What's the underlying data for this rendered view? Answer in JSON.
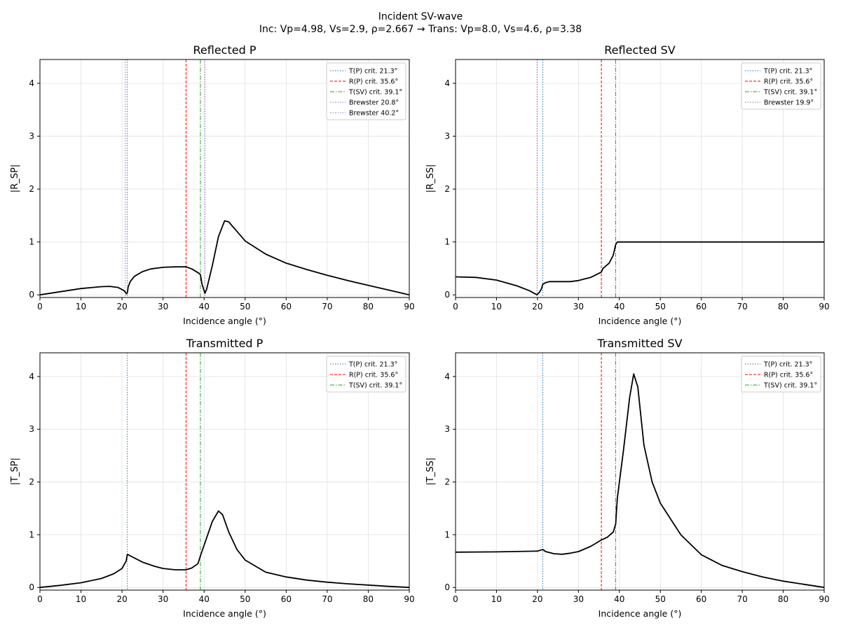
{
  "figure": {
    "title_line1": "Incident SV-wave",
    "title_line2": "Inc: Vp=4.98, Vs=2.9, ρ=2.667  →  Trans: Vp=8.0, Vs=4.6, ρ=3.38"
  },
  "colors": {
    "curve": "#000000",
    "tp_crit": "#1f77b4",
    "rp_crit": "#ff0000",
    "tsv_crit": "#2ca02c",
    "brewster": "#9467bd",
    "grid": "#e0e0e0"
  },
  "chart_data": [
    {
      "type": "line",
      "title": "Reflected P",
      "xlabel": "Incidence angle (°)",
      "ylabel": "|R_SP|",
      "xlim": [
        0,
        90
      ],
      "ylim": [
        -0.05,
        4.45
      ],
      "xticks": [
        0,
        10,
        20,
        30,
        40,
        50,
        60,
        70,
        80,
        90
      ],
      "yticks": [
        0,
        1,
        2,
        3,
        4
      ],
      "grid": true,
      "legend": "top-right",
      "x": [
        0,
        5,
        10,
        15,
        17,
        19,
        20.5,
        21.1,
        21.3,
        21.5,
        22,
        23,
        25,
        27,
        30,
        33,
        35.6,
        37,
        38.7,
        39.1,
        39.5,
        40.2,
        40.6,
        42,
        43.5,
        45,
        46,
        48,
        50,
        55,
        60,
        65,
        70,
        75,
        80,
        85,
        90
      ],
      "y": [
        0,
        0.06,
        0.12,
        0.155,
        0.16,
        0.14,
        0.08,
        0.02,
        0.04,
        0.15,
        0.25,
        0.35,
        0.44,
        0.49,
        0.52,
        0.53,
        0.53,
        0.49,
        0.41,
        0.38,
        0.2,
        0.03,
        0.1,
        0.55,
        1.1,
        1.4,
        1.38,
        1.2,
        1.02,
        0.77,
        0.6,
        0.48,
        0.37,
        0.27,
        0.18,
        0.09,
        0
      ],
      "vlines": [
        {
          "label": "T(P) crit. 21.3°",
          "x": 21.3,
          "kind": "tp"
        },
        {
          "label": "R(P) crit. 35.6°",
          "x": 35.6,
          "kind": "rp"
        },
        {
          "label": "T(SV) crit. 39.1°",
          "x": 39.1,
          "kind": "tsv"
        },
        {
          "label": "Brewster 20.8°",
          "x": 20.8,
          "kind": "brewster"
        },
        {
          "label": "Brewster 40.2°",
          "x": 40.2,
          "kind": "brewster"
        }
      ]
    },
    {
      "type": "line",
      "title": "Reflected SV",
      "xlabel": "Incidence angle (°)",
      "ylabel": "|R_SS|",
      "xlim": [
        0,
        90
      ],
      "ylim": [
        -0.05,
        4.45
      ],
      "xticks": [
        0,
        10,
        20,
        30,
        40,
        50,
        60,
        70,
        80,
        90
      ],
      "yticks": [
        0,
        1,
        2,
        3,
        4
      ],
      "grid": true,
      "legend": "top-right",
      "x": [
        0,
        5,
        10,
        15,
        18,
        19.9,
        20.5,
        21,
        21.3,
        22,
        23,
        25,
        28,
        30,
        33,
        35.6,
        36,
        37.5,
        38.5,
        39.1,
        39.5,
        90
      ],
      "y": [
        0.34,
        0.33,
        0.28,
        0.17,
        0.08,
        0,
        0.05,
        0.12,
        0.2,
        0.23,
        0.25,
        0.25,
        0.25,
        0.27,
        0.33,
        0.43,
        0.5,
        0.6,
        0.75,
        0.95,
        1.0,
        1.0
      ],
      "vlines": [
        {
          "label": "T(P) crit. 21.3°",
          "x": 21.3,
          "kind": "tp"
        },
        {
          "label": "R(P) crit. 35.6°",
          "x": 35.6,
          "kind": "rp"
        },
        {
          "label": "T(SV) crit. 39.1°",
          "x": 39.1,
          "kind": "tsv"
        },
        {
          "label": "Brewster 19.9°",
          "x": 19.9,
          "kind": "brewster"
        }
      ]
    },
    {
      "type": "line",
      "title": "Transmitted P",
      "xlabel": "Incidence angle (°)",
      "ylabel": "|T_SP|",
      "xlim": [
        0,
        90
      ],
      "ylim": [
        -0.05,
        4.45
      ],
      "xticks": [
        0,
        10,
        20,
        30,
        40,
        50,
        60,
        70,
        80,
        90
      ],
      "yticks": [
        0,
        1,
        2,
        3,
        4
      ],
      "grid": true,
      "legend": "top-right",
      "x": [
        0,
        5,
        10,
        15,
        18,
        20,
        21,
        21.3,
        22,
        25,
        28,
        30,
        33,
        35.6,
        37,
        38.5,
        39.1,
        40,
        42,
        43.5,
        44.5,
        46,
        48,
        50,
        55,
        60,
        65,
        70,
        75,
        80,
        85,
        90
      ],
      "y": [
        0,
        0.04,
        0.09,
        0.17,
        0.26,
        0.36,
        0.5,
        0.63,
        0.6,
        0.48,
        0.4,
        0.36,
        0.335,
        0.335,
        0.37,
        0.45,
        0.6,
        0.8,
        1.25,
        1.45,
        1.38,
        1.05,
        0.72,
        0.52,
        0.29,
        0.2,
        0.14,
        0.1,
        0.07,
        0.045,
        0.02,
        0
      ],
      "vlines": [
        {
          "label": "T(P) crit. 21.3°",
          "x": 21.3,
          "kind": "tp"
        },
        {
          "label": "R(P) crit. 35.6°",
          "x": 35.6,
          "kind": "rp"
        },
        {
          "label": "T(SV) crit. 39.1°",
          "x": 39.1,
          "kind": "tsv"
        }
      ]
    },
    {
      "type": "line",
      "title": "Transmitted SV",
      "xlabel": "Incidence angle (°)",
      "ylabel": "|T_SS|",
      "xlim": [
        0,
        90
      ],
      "ylim": [
        -0.05,
        4.45
      ],
      "xticks": [
        0,
        10,
        20,
        30,
        40,
        50,
        60,
        70,
        80,
        90
      ],
      "yticks": [
        0,
        1,
        2,
        3,
        4
      ],
      "grid": true,
      "legend": "top-right",
      "x": [
        0,
        10,
        20,
        21.3,
        22,
        24,
        26,
        28,
        30,
        33,
        35.6,
        37,
        38.5,
        39.1,
        39.5,
        41,
        42.5,
        43.5,
        44.5,
        46,
        48,
        50,
        55,
        60,
        65,
        70,
        75,
        80,
        85,
        90
      ],
      "y": [
        0.67,
        0.675,
        0.69,
        0.72,
        0.68,
        0.64,
        0.63,
        0.65,
        0.68,
        0.78,
        0.9,
        0.95,
        1.05,
        1.2,
        1.7,
        2.6,
        3.6,
        4.05,
        3.8,
        2.7,
        2.0,
        1.6,
        1.0,
        0.62,
        0.42,
        0.3,
        0.2,
        0.12,
        0.06,
        0
      ],
      "vlines": [
        {
          "label": "T(P) crit. 21.3°",
          "x": 21.3,
          "kind": "tp"
        },
        {
          "label": "R(P) crit. 35.6°",
          "x": 35.6,
          "kind": "rp"
        },
        {
          "label": "T(SV) crit. 39.1°",
          "x": 39.1,
          "kind": "tsv"
        }
      ]
    }
  ]
}
